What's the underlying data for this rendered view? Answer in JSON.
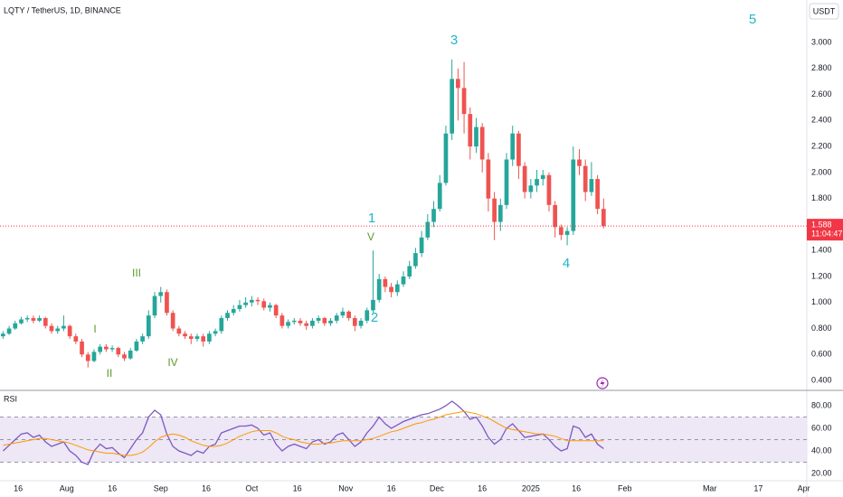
{
  "chart_data": [
    {
      "type": "candlestick",
      "title": "LQTY / TetherUS, 1D, BINANCE",
      "unit": "USDT",
      "x": [
        10,
        12,
        14,
        16,
        18,
        20,
        22,
        24,
        26,
        28,
        30,
        32,
        34,
        36,
        38,
        40,
        42,
        44,
        46,
        48,
        50,
        52,
        54,
        56,
        58,
        60,
        62,
        64,
        66,
        68,
        70,
        72,
        74,
        76,
        78,
        80,
        82,
        84,
        86,
        88,
        90,
        92,
        94,
        96,
        98,
        100,
        102,
        104,
        106,
        108,
        110,
        112,
        114,
        116,
        118,
        120,
        122,
        124,
        126,
        128,
        130,
        132,
        134,
        136,
        138,
        140,
        142,
        144,
        146,
        148,
        150,
        152,
        154,
        156,
        158,
        160,
        162,
        164,
        166,
        168,
        170,
        172,
        174,
        176,
        178,
        180,
        182,
        184,
        186,
        188,
        190,
        192,
        194,
        196,
        198,
        200,
        202,
        204,
        206,
        208
      ],
      "open": [
        0.74,
        0.76,
        0.8,
        0.84,
        0.87,
        0.88,
        0.86,
        0.88,
        0.82,
        0.78,
        0.8,
        0.82,
        0.74,
        0.7,
        0.6,
        0.55,
        0.62,
        0.66,
        0.64,
        0.65,
        0.6,
        0.57,
        0.63,
        0.7,
        0.74,
        0.9,
        1.05,
        1.08,
        0.92,
        0.8,
        0.76,
        0.74,
        0.72,
        0.74,
        0.7,
        0.76,
        0.78,
        0.88,
        0.92,
        0.95,
        0.98,
        1.0,
        1.02,
        1.01,
        0.96,
        0.98,
        0.9,
        0.82,
        0.85,
        0.86,
        0.84,
        0.82,
        0.86,
        0.88,
        0.84,
        0.86,
        0.9,
        0.93,
        0.88,
        0.82,
        0.86,
        0.94,
        1.02,
        1.18,
        1.12,
        1.08,
        1.14,
        1.2,
        1.28,
        1.38,
        1.5,
        1.62,
        1.72,
        1.92,
        2.3,
        2.72,
        2.65,
        2.45,
        2.2,
        2.35,
        2.1,
        1.8,
        1.62,
        1.75,
        2.1,
        2.3,
        2.05,
        1.85,
        1.9,
        1.95,
        1.98,
        1.75,
        1.58,
        1.52,
        1.55,
        2.1,
        2.05,
        1.85,
        1.95,
        1.72
      ],
      "high": [
        0.78,
        0.82,
        0.86,
        0.89,
        0.9,
        0.9,
        0.9,
        0.89,
        0.84,
        0.82,
        0.9,
        0.83,
        0.76,
        0.72,
        0.62,
        0.64,
        0.68,
        0.68,
        0.67,
        0.66,
        0.62,
        0.65,
        0.72,
        0.76,
        0.94,
        1.08,
        1.12,
        1.1,
        0.94,
        0.82,
        0.78,
        0.76,
        0.76,
        0.76,
        0.78,
        0.8,
        0.9,
        0.94,
        0.98,
        1.02,
        1.04,
        1.05,
        1.04,
        1.03,
        1.0,
        0.99,
        0.92,
        0.87,
        0.88,
        0.88,
        0.86,
        0.88,
        0.9,
        0.89,
        0.88,
        0.92,
        0.96,
        0.94,
        0.9,
        0.88,
        0.96,
        1.4,
        1.22,
        1.2,
        1.15,
        1.17,
        1.24,
        1.32,
        1.42,
        1.55,
        1.68,
        1.78,
        1.98,
        2.36,
        2.87,
        2.8,
        2.85,
        2.5,
        2.42,
        2.38,
        2.15,
        1.85,
        1.8,
        2.15,
        2.36,
        2.32,
        2.08,
        1.95,
        2.02,
        2.02,
        2.0,
        1.78,
        1.6,
        1.58,
        2.2,
        2.18,
        2.1,
        2.08,
        1.98,
        1.8
      ],
      "low": [
        0.72,
        0.75,
        0.79,
        0.83,
        0.85,
        0.84,
        0.85,
        0.8,
        0.76,
        0.76,
        0.78,
        0.72,
        0.68,
        0.58,
        0.5,
        0.54,
        0.6,
        0.62,
        0.62,
        0.58,
        0.55,
        0.56,
        0.62,
        0.68,
        0.72,
        0.88,
        1.0,
        0.9,
        0.78,
        0.74,
        0.72,
        0.68,
        0.7,
        0.66,
        0.68,
        0.74,
        0.76,
        0.86,
        0.9,
        0.93,
        0.96,
        0.97,
        0.98,
        0.94,
        0.93,
        0.88,
        0.8,
        0.8,
        0.83,
        0.82,
        0.79,
        0.8,
        0.84,
        0.82,
        0.82,
        0.84,
        0.88,
        0.86,
        0.78,
        0.8,
        0.84,
        0.92,
        1.0,
        1.08,
        1.04,
        1.05,
        1.12,
        1.18,
        1.26,
        1.35,
        1.48,
        1.58,
        1.7,
        1.9,
        2.25,
        2.4,
        2.3,
        2.1,
        2.15,
        2.0,
        1.7,
        1.48,
        1.55,
        1.72,
        2.05,
        1.95,
        1.8,
        1.8,
        1.85,
        1.9,
        1.7,
        1.5,
        1.48,
        1.44,
        1.52,
        1.98,
        1.78,
        1.82,
        1.68,
        1.57
      ],
      "close": [
        0.76,
        0.8,
        0.84,
        0.87,
        0.88,
        0.86,
        0.88,
        0.82,
        0.78,
        0.8,
        0.82,
        0.74,
        0.7,
        0.6,
        0.55,
        0.62,
        0.66,
        0.64,
        0.65,
        0.6,
        0.57,
        0.63,
        0.7,
        0.74,
        0.9,
        1.05,
        1.08,
        0.92,
        0.8,
        0.76,
        0.74,
        0.72,
        0.74,
        0.7,
        0.76,
        0.78,
        0.88,
        0.92,
        0.95,
        0.98,
        1.0,
        1.02,
        1.01,
        0.96,
        0.98,
        0.9,
        0.82,
        0.85,
        0.86,
        0.84,
        0.82,
        0.86,
        0.88,
        0.84,
        0.86,
        0.9,
        0.93,
        0.88,
        0.82,
        0.86,
        0.94,
        1.02,
        1.18,
        1.12,
        1.08,
        1.14,
        1.2,
        1.28,
        1.38,
        1.5,
        1.62,
        1.72,
        1.92,
        2.3,
        2.72,
        2.65,
        2.45,
        2.2,
        2.35,
        2.1,
        1.8,
        1.62,
        1.75,
        2.1,
        2.3,
        2.05,
        1.85,
        1.9,
        1.95,
        1.98,
        1.75,
        1.58,
        1.52,
        1.55,
        2.1,
        2.05,
        1.85,
        1.95,
        1.72,
        1.588
      ],
      "up_color": "#26a69a",
      "down_color": "#ef5350",
      "xlim": [
        9,
        275
      ],
      "ylim": [
        0.324,
        3.327
      ],
      "xticks": [
        {
          "value": 15,
          "label": "16"
        },
        {
          "value": 31,
          "label": "Aug"
        },
        {
          "value": 46,
          "label": "16"
        },
        {
          "value": 62,
          "label": "Sep"
        },
        {
          "value": 77,
          "label": "16"
        },
        {
          "value": 92,
          "label": "Oct"
        },
        {
          "value": 107,
          "label": "16"
        },
        {
          "value": 123,
          "label": "Nov"
        },
        {
          "value": 138,
          "label": "16"
        },
        {
          "value": 153,
          "label": "Dec"
        },
        {
          "value": 168,
          "label": "16"
        },
        {
          "value": 184,
          "label": "2025"
        },
        {
          "value": 199,
          "label": "16"
        },
        {
          "value": 215,
          "label": "Feb"
        },
        {
          "value": 243,
          "label": "Mar"
        },
        {
          "value": 259,
          "label": "17"
        },
        {
          "value": 274,
          "label": "Apr"
        }
      ],
      "yticks": [
        {
          "value": 0.4,
          "label": "0.400"
        },
        {
          "value": 0.6,
          "label": "0.600"
        },
        {
          "value": 0.8,
          "label": "0.800"
        },
        {
          "value": 1.0,
          "label": "1.000"
        },
        {
          "value": 1.2,
          "label": "1.200"
        },
        {
          "value": 1.4,
          "label": "1.400"
        },
        {
          "value": 1.6,
          "label": "1.600"
        },
        {
          "value": 1.8,
          "label": "1.800"
        },
        {
          "value": 2.0,
          "label": "2.000"
        },
        {
          "value": 2.2,
          "label": "2.200"
        },
        {
          "value": 2.4,
          "label": "2.400"
        },
        {
          "value": 2.6,
          "label": "2.600"
        },
        {
          "value": 2.8,
          "label": "2.800"
        },
        {
          "value": 3.0,
          "label": "3.000"
        }
      ],
      "last_price": 1.588,
      "last_price_color": "#f23645",
      "countdown": "11:04:47",
      "annotations": [
        {
          "text": "3",
          "color": "#22b5c9"
        },
        {
          "text": "5",
          "color": "#22b5c9"
        },
        {
          "text": "1",
          "color": "#22b5c9"
        },
        {
          "text": "2",
          "color": "#22b5c9"
        },
        {
          "text": "4",
          "color": "#22b5c9"
        },
        {
          "text": "V",
          "color": "#5a9a2b"
        },
        {
          "text": "III",
          "color": "#5a9a2b"
        },
        {
          "text": "I",
          "color": "#5a9a2b"
        },
        {
          "text": "II",
          "color": "#5a9a2b"
        },
        {
          "text": "IV",
          "color": "#5a9a2b"
        }
      ]
    },
    {
      "type": "line",
      "title": "RSI",
      "x": [
        10,
        12,
        14,
        16,
        18,
        20,
        22,
        24,
        26,
        28,
        30,
        32,
        34,
        36,
        38,
        40,
        42,
        44,
        46,
        48,
        50,
        52,
        54,
        56,
        58,
        60,
        62,
        64,
        66,
        68,
        70,
        72,
        74,
        76,
        78,
        80,
        82,
        84,
        86,
        88,
        90,
        92,
        94,
        96,
        98,
        100,
        102,
        104,
        106,
        108,
        110,
        112,
        114,
        116,
        118,
        120,
        122,
        124,
        126,
        128,
        130,
        132,
        134,
        136,
        138,
        140,
        142,
        144,
        146,
        148,
        150,
        152,
        154,
        156,
        158,
        160,
        162,
        164,
        166,
        168,
        170,
        172,
        174,
        176,
        178,
        180,
        182,
        184,
        186,
        188,
        190,
        192,
        194,
        196,
        198,
        200,
        202,
        204,
        206,
        208
      ],
      "series": [
        {
          "color": "#7e57c2",
          "values": [
            40,
            45,
            50,
            55,
            56,
            52,
            54,
            48,
            44,
            46,
            48,
            40,
            36,
            30,
            28,
            40,
            46,
            42,
            43,
            38,
            34,
            42,
            50,
            56,
            70,
            76,
            72,
            55,
            44,
            40,
            38,
            36,
            40,
            38,
            44,
            46,
            56,
            58,
            60,
            62,
            62,
            63,
            60,
            54,
            56,
            46,
            40,
            44,
            46,
            44,
            42,
            48,
            50,
            46,
            48,
            54,
            56,
            50,
            44,
            48,
            56,
            62,
            70,
            64,
            60,
            63,
            66,
            68,
            70,
            72,
            73,
            75,
            77,
            80,
            84,
            80,
            75,
            68,
            70,
            62,
            52,
            46,
            50,
            60,
            64,
            58,
            52,
            53,
            54,
            55,
            50,
            44,
            40,
            42,
            62,
            60,
            52,
            55,
            46,
            42
          ]
        },
        {
          "color": "#ff9800",
          "values": [
            45,
            46,
            47,
            48,
            49,
            50,
            51,
            51,
            50,
            49,
            48,
            47,
            45,
            43,
            41,
            40,
            39,
            38,
            38,
            37,
            36,
            36,
            37,
            39,
            43,
            48,
            52,
            54,
            55,
            54,
            52,
            49,
            47,
            45,
            44,
            44,
            45,
            47,
            50,
            53,
            55,
            57,
            58,
            58,
            58,
            56,
            53,
            51,
            50,
            48,
            47,
            46,
            46,
            47,
            47,
            48,
            49,
            49,
            49,
            49,
            50,
            51,
            53,
            55,
            57,
            58,
            60,
            62,
            64,
            65,
            67,
            68,
            70,
            72,
            73,
            74,
            75,
            74,
            73,
            71,
            69,
            66,
            63,
            60,
            59,
            58,
            57,
            56,
            55,
            55,
            54,
            53,
            51,
            49,
            49,
            49,
            49,
            49,
            49,
            49
          ]
        }
      ],
      "ylim": [
        13.6,
        92.8
      ],
      "yticks": [
        {
          "value": 80,
          "label": "80.00"
        },
        {
          "value": 60,
          "label": "60.00"
        },
        {
          "value": 40,
          "label": "40.00"
        },
        {
          "value": 20,
          "label": "20.00"
        }
      ],
      "levels": [
        70,
        50,
        30
      ],
      "band_color": "#ede7f6"
    }
  ]
}
